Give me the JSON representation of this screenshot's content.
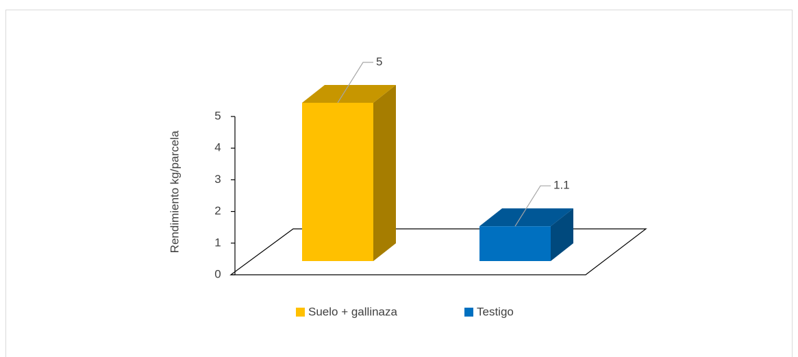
{
  "chart_data": {
    "type": "bar3d",
    "y_label": "Rendimiento kg/parcela",
    "categories": [
      null
    ],
    "series": [
      {
        "name": "Suelo + gallinaza",
        "color": "#FFC000",
        "values": [
          5
        ]
      },
      {
        "name": "Testigo",
        "color": "#0070C0",
        "values": [
          1.1
        ]
      }
    ],
    "ylim": [
      0,
      5
    ],
    "yticks": [
      0,
      1,
      2,
      3,
      4,
      5
    ],
    "legend": "bottom"
  }
}
